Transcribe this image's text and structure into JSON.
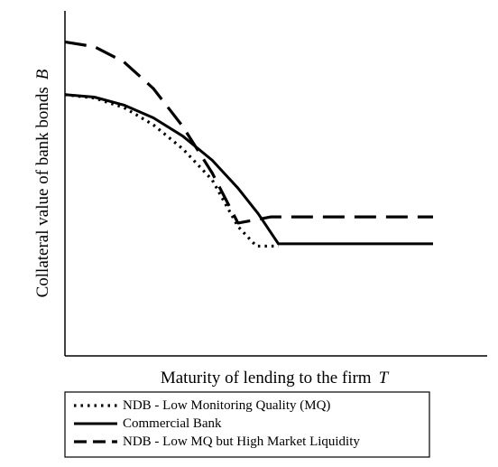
{
  "chart_data": {
    "type": "line",
    "xlabel": "Maturity of lending to the firm",
    "xlabel_symbol": "T",
    "ylabel": "Collateral value of bank bonds",
    "ylabel_symbol": "B",
    "title": "",
    "grid": false,
    "axis_ticks": false,
    "xlim": [
      0,
      10
    ],
    "ylim": [
      0,
      10
    ],
    "legend_position": "bottom",
    "series": [
      {
        "name": "NDB - Low Monitoring Quality (MQ)",
        "style": "dotted",
        "color": "#000000",
        "points": [
          [
            0,
            7.57
          ],
          [
            0.8,
            7.47
          ],
          [
            1.6,
            7.2
          ],
          [
            2.4,
            6.7
          ],
          [
            3.2,
            6.0
          ],
          [
            4.0,
            5.1
          ],
          [
            4.7,
            3.75
          ],
          [
            5.2,
            3.18
          ],
          [
            5.8,
            3.18
          ]
        ]
      },
      {
        "name": "Commercial Bank",
        "style": "solid",
        "color": "#000000",
        "points": [
          [
            0,
            7.57
          ],
          [
            0.8,
            7.5
          ],
          [
            1.6,
            7.27
          ],
          [
            2.4,
            6.9
          ],
          [
            3.2,
            6.37
          ],
          [
            4.0,
            5.67
          ],
          [
            4.7,
            4.86
          ],
          [
            5.25,
            4.12
          ],
          [
            5.8,
            3.25
          ],
          [
            10,
            3.25
          ]
        ]
      },
      {
        "name": "NDB - Low MQ but High Market Liquidity",
        "style": "dashed",
        "color": "#000000",
        "points": [
          [
            0,
            9.1
          ],
          [
            0.8,
            8.96
          ],
          [
            1.6,
            8.52
          ],
          [
            2.4,
            7.75
          ],
          [
            3.2,
            6.65
          ],
          [
            4.0,
            5.3
          ],
          [
            4.7,
            3.85
          ],
          [
            5.6,
            4.03
          ],
          [
            10,
            4.03
          ]
        ]
      }
    ]
  }
}
